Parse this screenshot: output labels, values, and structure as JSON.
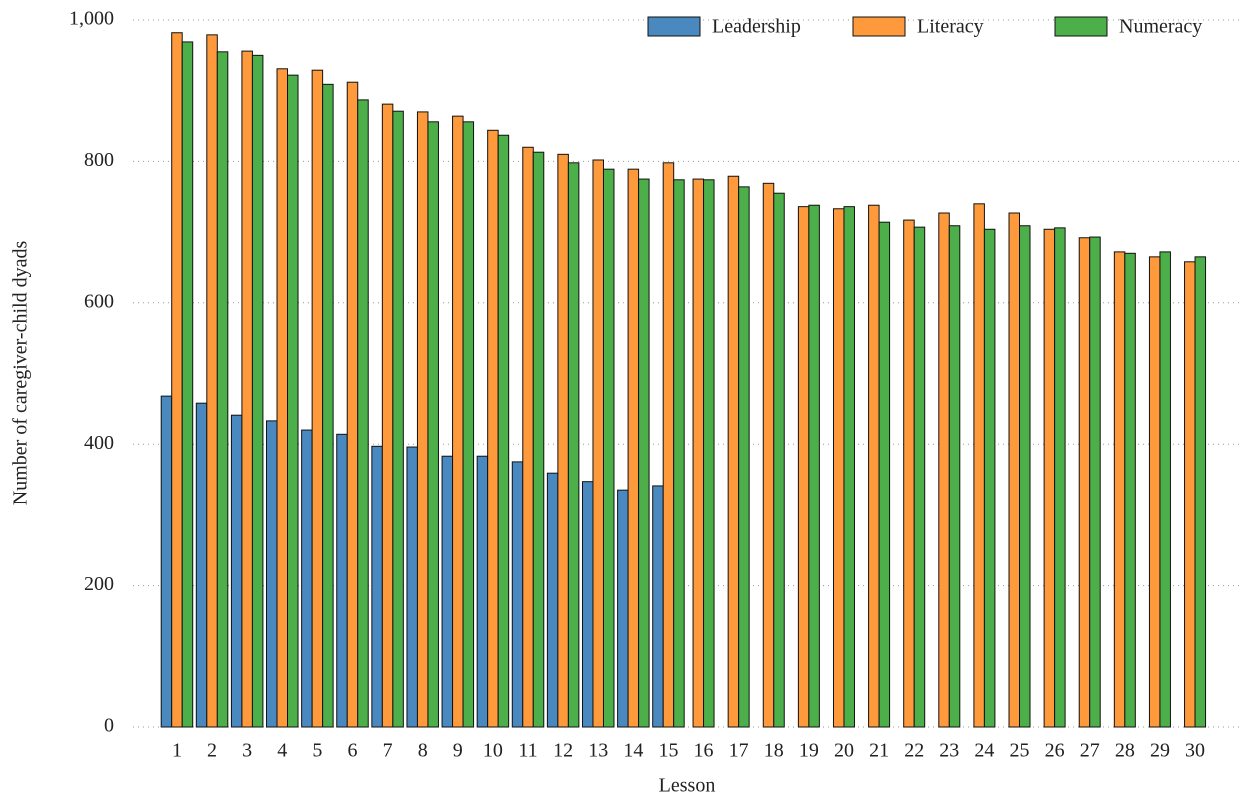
{
  "chart_data": {
    "type": "bar",
    "x_label": "Lesson",
    "y_label": "Number of caregiver-child dyads",
    "categories": [
      "1",
      "2",
      "3",
      "4",
      "5",
      "6",
      "7",
      "8",
      "9",
      "10",
      "11",
      "12",
      "13",
      "14",
      "15",
      "16",
      "17",
      "18",
      "19",
      "20",
      "21",
      "22",
      "23",
      "24",
      "25",
      "26",
      "27",
      "28",
      "29",
      "30"
    ],
    "series": [
      {
        "name": "Leadership",
        "color": "#4a89c0",
        "values": [
          468,
          458,
          441,
          433,
          420,
          414,
          397,
          396,
          383,
          383,
          375,
          359,
          347,
          335,
          341,
          null,
          null,
          null,
          null,
          null,
          null,
          null,
          null,
          null,
          null,
          null,
          null,
          null,
          null,
          null
        ]
      },
      {
        "name": "Literacy",
        "color": "#ff9a3c",
        "values": [
          982,
          979,
          956,
          931,
          929,
          912,
          881,
          870,
          864,
          844,
          820,
          810,
          802,
          789,
          798,
          775,
          779,
          769,
          736,
          733,
          738,
          717,
          727,
          740,
          727,
          704,
          692,
          672,
          665,
          658
        ]
      },
      {
        "name": "Numeracy",
        "color": "#4daf4a",
        "values": [
          969,
          955,
          950,
          922,
          909,
          887,
          871,
          856,
          856,
          837,
          813,
          798,
          789,
          775,
          774,
          774,
          764,
          755,
          738,
          736,
          714,
          707,
          709,
          704,
          709,
          706,
          693,
          670,
          672,
          665
        ]
      }
    ],
    "ylim": [
      0,
      1000
    ],
    "yticks": [
      0,
      200,
      400,
      600,
      800,
      {
        "value": 1000,
        "label": "1,000"
      }
    ],
    "grid": true,
    "legend": "top-right"
  }
}
